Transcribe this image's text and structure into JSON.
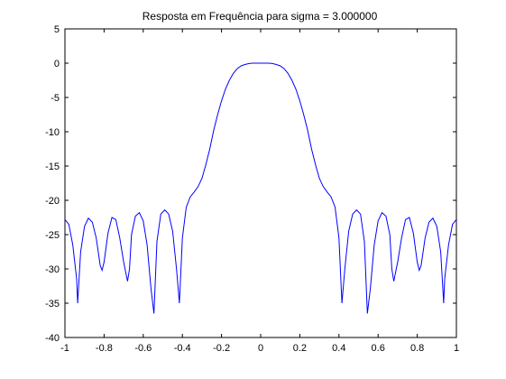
{
  "chart_data": {
    "type": "line",
    "title": "Resposta em Frequência para sigma = 3.000000",
    "xlabel": "",
    "ylabel": "",
    "xlim": [
      -1,
      1
    ],
    "ylim": [
      -40,
      5
    ],
    "x_ticks": [
      -1,
      -0.8,
      -0.6,
      -0.4,
      -0.2,
      0,
      0.2,
      0.4,
      0.6,
      0.8,
      1
    ],
    "x_tick_labels": [
      "-1",
      "-0.8",
      "-0.6",
      "-0.4",
      "-0.2",
      "0",
      "0.2",
      "0.4",
      "0.6",
      "0.8",
      "1"
    ],
    "y_ticks": [
      5,
      0,
      -5,
      -10,
      -15,
      -20,
      -25,
      -30,
      -35,
      -40
    ],
    "y_tick_labels": [
      "5",
      "0",
      "-5",
      "-10",
      "-15",
      "-20",
      "-25",
      "-30",
      "-35",
      "-40"
    ],
    "grid": false,
    "line_color": "#0000ff",
    "series": [
      {
        "x": [
          -1.0,
          -0.98,
          -0.96,
          -0.94,
          -0.935,
          -0.92,
          -0.9,
          -0.88,
          -0.86,
          -0.84,
          -0.82,
          -0.81,
          -0.8,
          -0.78,
          -0.76,
          -0.74,
          -0.72,
          -0.7,
          -0.68,
          -0.67,
          -0.66,
          -0.64,
          -0.62,
          -0.6,
          -0.58,
          -0.56,
          -0.545,
          -0.53,
          -0.51,
          -0.49,
          -0.47,
          -0.45,
          -0.43,
          -0.415,
          -0.4,
          -0.38,
          -0.36,
          -0.34,
          -0.32,
          -0.3,
          -0.28,
          -0.26,
          -0.24,
          -0.22,
          -0.2,
          -0.18,
          -0.16,
          -0.14,
          -0.12,
          -0.1,
          -0.08,
          -0.06,
          -0.04,
          -0.02,
          0.0,
          0.02,
          0.04,
          0.06,
          0.08,
          0.1,
          0.12,
          0.14,
          0.16,
          0.18,
          0.2,
          0.22,
          0.24,
          0.26,
          0.28,
          0.3,
          0.32,
          0.34,
          0.36,
          0.38,
          0.4,
          0.415,
          0.43,
          0.45,
          0.47,
          0.49,
          0.51,
          0.53,
          0.545,
          0.56,
          0.58,
          0.6,
          0.62,
          0.64,
          0.66,
          0.67,
          0.68,
          0.7,
          0.72,
          0.74,
          0.76,
          0.78,
          0.8,
          0.81,
          0.82,
          0.84,
          0.86,
          0.88,
          0.9,
          0.92,
          0.935,
          0.94,
          0.96,
          0.98,
          1.0
        ],
        "y": [
          -22.8,
          -23.5,
          -26.5,
          -31.5,
          -35.0,
          -27.5,
          -23.8,
          -22.6,
          -23.2,
          -25.5,
          -29.5,
          -30.2,
          -29.0,
          -24.8,
          -22.5,
          -22.8,
          -25.5,
          -29.0,
          -31.8,
          -30.0,
          -25.0,
          -22.3,
          -21.8,
          -23.0,
          -26.5,
          -33.0,
          -36.5,
          -26.0,
          -22.0,
          -21.4,
          -22.0,
          -24.5,
          -30.0,
          -35.0,
          -25.5,
          -21.0,
          -19.5,
          -18.8,
          -18.0,
          -16.8,
          -14.8,
          -12.5,
          -9.8,
          -7.5,
          -5.5,
          -3.8,
          -2.5,
          -1.5,
          -0.8,
          -0.4,
          -0.2,
          -0.05,
          0.0,
          0.0,
          0.0,
          0.0,
          0.0,
          -0.05,
          -0.2,
          -0.4,
          -0.8,
          -1.5,
          -2.5,
          -3.8,
          -5.5,
          -7.5,
          -9.8,
          -12.5,
          -14.8,
          -16.8,
          -18.0,
          -18.8,
          -19.5,
          -21.0,
          -25.5,
          -35.0,
          -30.0,
          -24.5,
          -22.0,
          -21.4,
          -22.0,
          -26.0,
          -36.5,
          -33.0,
          -26.5,
          -23.0,
          -21.8,
          -22.3,
          -25.0,
          -30.0,
          -31.8,
          -29.0,
          -25.5,
          -22.8,
          -22.5,
          -24.8,
          -29.0,
          -30.2,
          -29.5,
          -25.5,
          -23.2,
          -22.6,
          -23.8,
          -27.5,
          -35.0,
          -31.5,
          -26.5,
          -23.5,
          -22.8
        ]
      }
    ]
  }
}
